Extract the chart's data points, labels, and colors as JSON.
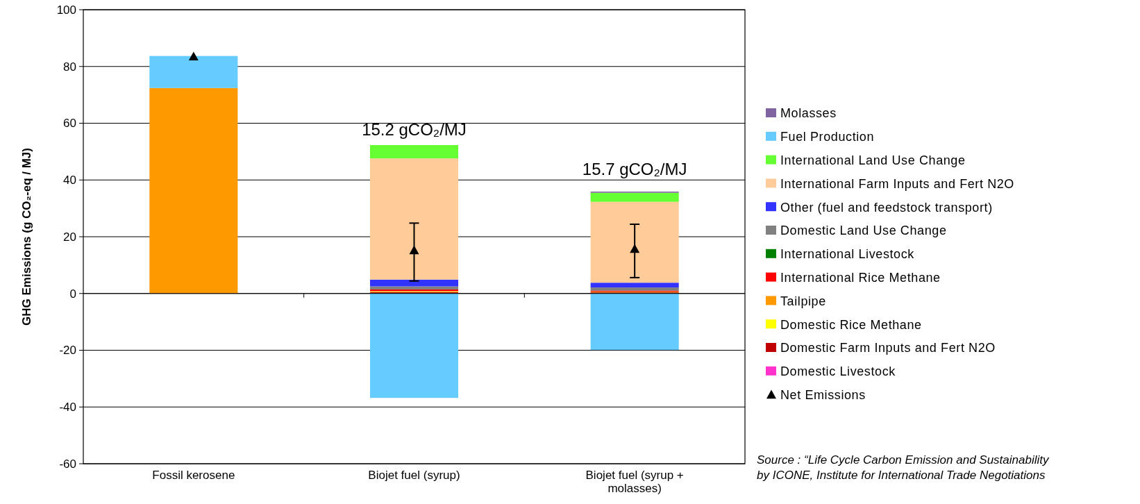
{
  "chart_data": {
    "type": "bar",
    "stacked": true,
    "ylabel": "GHG Emissions (g CO₂-eq / MJ)",
    "categories": [
      "Fossil kerosene",
      "Biojet fuel (syrup)",
      "Biojet fuel (syrup + molasses)"
    ],
    "ylim": [
      -60,
      100
    ],
    "yticks": [
      -60,
      -40,
      -20,
      0,
      20,
      40,
      60,
      80,
      100
    ],
    "grid": "y",
    "legend": "right",
    "series": [
      {
        "name": "Domestic Livestock",
        "color": "#ff33cc",
        "values": [
          0,
          0,
          0
        ]
      },
      {
        "name": "Domestic Farm Inputs and Fert N2O",
        "color": "#c00000",
        "values": [
          0,
          0.5,
          0.4
        ]
      },
      {
        "name": "Domestic Rice Methane",
        "color": "#ffff00",
        "values": [
          0,
          0.3,
          0.2
        ]
      },
      {
        "name": "Tailpipe",
        "color": "#ff9900",
        "values": [
          72.4,
          0,
          0
        ]
      },
      {
        "name": "International Rice Methane",
        "color": "#ff0000",
        "values": [
          0,
          0.6,
          0.4
        ]
      },
      {
        "name": "International Livestock",
        "color": "#008000",
        "values": [
          0,
          0,
          0
        ]
      },
      {
        "name": "Domestic Land Use Change",
        "color": "#808080",
        "values": [
          0,
          1.1,
          1.1
        ]
      },
      {
        "name": "Other (fuel and feedstock transport)",
        "color": "#3333ff",
        "values": [
          0,
          2.4,
          1.7
        ]
      },
      {
        "name": "International Farm Inputs and Fert N2O",
        "color": "#ffcc99",
        "values": [
          0,
          42.7,
          28.5
        ]
      },
      {
        "name": "International Land Use Change",
        "color": "#66ff33",
        "values": [
          0,
          4.7,
          3.2
        ]
      },
      {
        "name": "Fuel Production",
        "color": "#66ccff",
        "values": [
          11.3,
          -36.8,
          -19.9
        ]
      },
      {
        "name": "Molasses",
        "color": "#8064a2",
        "values": [
          0,
          0,
          0.4
        ]
      },
      {
        "name": "Net Emissions",
        "type": "scatter",
        "marker": "triangle",
        "color": "#000000",
        "x": [
          "Fossil kerosene",
          "Biojet fuel (syrup)",
          "Biojet fuel (syrup + molasses)"
        ],
        "values": [
          83.5,
          15.2,
          15.7
        ],
        "errors": [
          null,
          [
            4.4,
            24.8
          ],
          [
            5.6,
            24.4
          ]
        ]
      }
    ],
    "annotations": [
      "15.2 gCO₂/MJ",
      "15.7 gCO₂/MJ",
      "Source : “Life Cycle Carbon Emission and Sustainability",
      "by ICONE, Institute for International Trade Negotiations"
    ]
  }
}
